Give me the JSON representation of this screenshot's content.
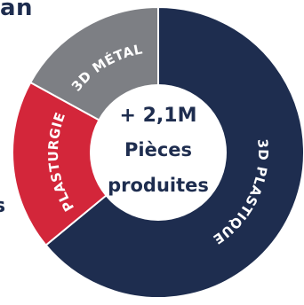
{
  "header_fragment": "an",
  "left_fragment": "s",
  "chart_data": {
    "type": "pie",
    "variant": "donut",
    "total_label": "+ 2,1M",
    "center_lines": [
      "Pièces",
      "produites"
    ],
    "slices": [
      {
        "label": "3D PLASTIQUE",
        "value": 64,
        "color": "#1e2d4f"
      },
      {
        "label": "PLASTURGIE",
        "value": 19,
        "color": "#d3263a"
      },
      {
        "label": "3D MÉTAL",
        "value": 17,
        "color": "#7d7f84"
      }
    ]
  }
}
